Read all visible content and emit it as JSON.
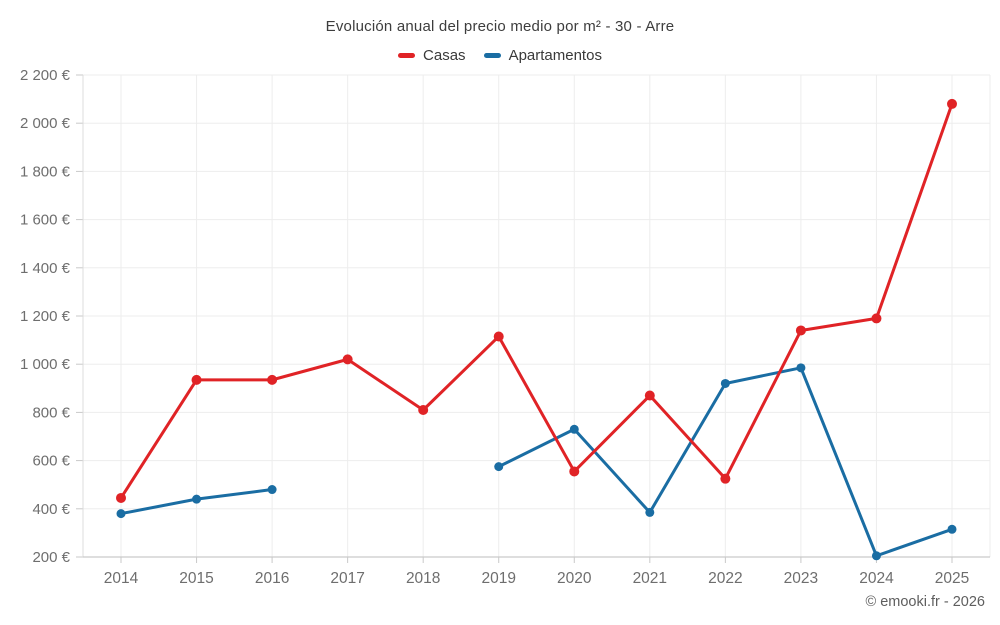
{
  "footer": "© emooki.fr - 2026",
  "colors": {
    "casas": "#e02326",
    "apartamentos": "#1a6da3",
    "grid": "#ededed",
    "axis_bottom": "#c9c9c9",
    "axis_left": "#dcdcdc",
    "tick": "#c9c9c9",
    "title_text": "#3d3d3d",
    "axis_text": "#6e6e6e",
    "footer_text": "#5e5e5e"
  },
  "chart_data": {
    "type": "line",
    "title": "Evolución anual del precio medio por m² - 30 - Arre",
    "categories": [
      "2014",
      "2015",
      "2016",
      "2017",
      "2018",
      "2019",
      "2020",
      "2021",
      "2022",
      "2023",
      "2024",
      "2025"
    ],
    "series": [
      {
        "name": "Casas",
        "color": "#e02326",
        "values": [
          445,
          935,
          935,
          1020,
          810,
          1115,
          555,
          870,
          525,
          1140,
          1190,
          2080
        ]
      },
      {
        "name": "Apartamentos",
        "color": "#1a6da3",
        "values": [
          380,
          440,
          480,
          null,
          null,
          575,
          730,
          385,
          920,
          985,
          205,
          315
        ]
      }
    ],
    "xlabel": "",
    "ylabel": "€",
    "ylim": [
      200,
      2200
    ],
    "ytick_step": 200,
    "y_tick_labels": [
      "200 €",
      "400 €",
      "600 €",
      "800 €",
      "1 000 €",
      "1 200 €",
      "1 400 €",
      "1 600 €",
      "1 800 €",
      "2 000 €",
      "2 200 €"
    ],
    "grid": true,
    "legend_position": "top",
    "missing_data_note": "Apartamentos has no data for 2017 and 2018 (line gap)"
  }
}
